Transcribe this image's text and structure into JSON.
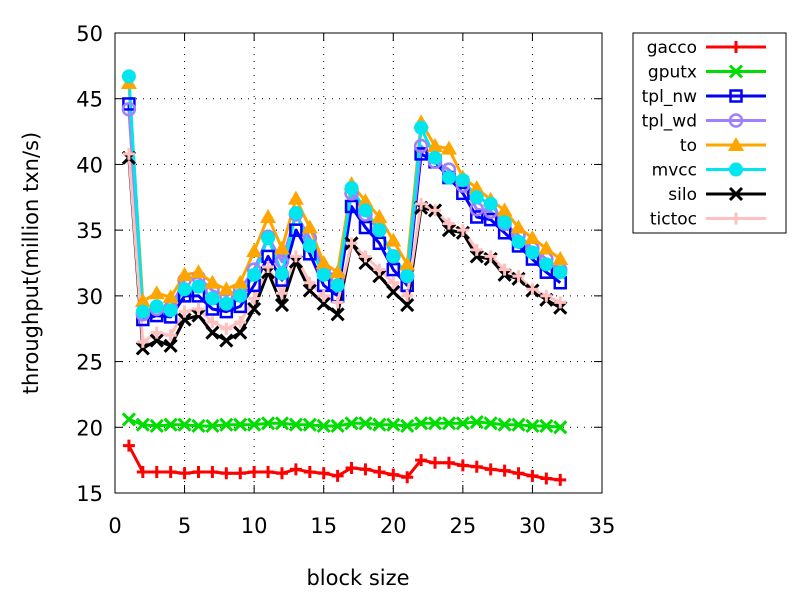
{
  "chart_data": {
    "type": "line",
    "title": "",
    "xlabel": "block size",
    "ylabel": "throughput(million txn/s)",
    "xlim": [
      0,
      35
    ],
    "ylim": [
      15,
      50
    ],
    "xticks": [
      0,
      5,
      10,
      15,
      20,
      25,
      30,
      35
    ],
    "yticks": [
      15,
      20,
      25,
      30,
      35,
      40,
      45,
      50
    ],
    "grid": "dotted",
    "legend_position": "top-right-outside",
    "x": [
      1,
      2,
      3,
      4,
      5,
      6,
      7,
      8,
      9,
      10,
      11,
      12,
      13,
      14,
      15,
      16,
      17,
      18,
      19,
      20,
      21,
      22,
      23,
      24,
      25,
      26,
      27,
      28,
      29,
      30,
      31,
      32
    ],
    "series": [
      {
        "name": "gacco",
        "color": "#ff0000",
        "marker": "plus",
        "values": [
          18.6,
          16.6,
          16.6,
          16.6,
          16.5,
          16.6,
          16.6,
          16.5,
          16.5,
          16.6,
          16.6,
          16.5,
          16.8,
          16.6,
          16.5,
          16.3,
          16.9,
          16.8,
          16.6,
          16.4,
          16.2,
          17.5,
          17.3,
          17.3,
          17.1,
          17.0,
          16.8,
          16.7,
          16.5,
          16.3,
          16.1,
          16.0
        ]
      },
      {
        "name": "gputx",
        "color": "#00dd00",
        "marker": "x",
        "values": [
          20.6,
          20.2,
          20.1,
          20.2,
          20.2,
          20.1,
          20.1,
          20.2,
          20.2,
          20.2,
          20.3,
          20.3,
          20.2,
          20.2,
          20.1,
          20.1,
          20.3,
          20.3,
          20.2,
          20.2,
          20.1,
          20.3,
          20.3,
          20.3,
          20.3,
          20.4,
          20.3,
          20.2,
          20.2,
          20.1,
          20.1,
          20.0
        ]
      },
      {
        "name": "tpl_nw",
        "color": "#0000ff",
        "marker": "square",
        "values": [
          44.6,
          28.2,
          28.5,
          28.4,
          30.0,
          30.0,
          29.0,
          28.8,
          29.2,
          30.8,
          33.0,
          31.2,
          35.0,
          33.2,
          30.8,
          30.0,
          36.8,
          35.2,
          34.0,
          32.0,
          30.8,
          40.8,
          40.2,
          39.0,
          37.8,
          36.0,
          35.8,
          34.8,
          33.8,
          32.8,
          31.8,
          31.0
        ]
      },
      {
        "name": "tpl_wd",
        "color": "#a080ff",
        "marker": "circle",
        "values": [
          44.2,
          28.6,
          29.0,
          29.1,
          31.2,
          31.4,
          30.4,
          30.0,
          30.5,
          32.0,
          34.5,
          32.6,
          36.2,
          34.4,
          32.0,
          31.4,
          37.8,
          36.2,
          35.0,
          33.0,
          31.5,
          41.4,
          40.2,
          39.6,
          38.4,
          36.6,
          36.4,
          35.5,
          34.6,
          33.6,
          32.8,
          32.0
        ]
      },
      {
        "name": "to",
        "color": "#ffa500",
        "marker": "triangle",
        "values": [
          46.2,
          29.6,
          30.2,
          29.9,
          31.6,
          31.8,
          31.0,
          30.5,
          31.0,
          33.4,
          36.0,
          33.6,
          37.4,
          35.2,
          32.5,
          31.8,
          38.5,
          37.2,
          36.0,
          34.2,
          32.4,
          43.2,
          41.4,
          41.2,
          39.0,
          38.2,
          37.3,
          36.5,
          35.2,
          34.4,
          33.6,
          32.8
        ]
      },
      {
        "name": "mvcc",
        "color": "#00e5ee",
        "marker": "filled-circle",
        "values": [
          46.7,
          28.8,
          29.2,
          28.9,
          30.5,
          30.7,
          29.8,
          29.4,
          30.0,
          31.6,
          34.4,
          31.7,
          36.3,
          33.8,
          31.6,
          30.8,
          38.2,
          36.5,
          35.0,
          33.0,
          31.5,
          42.8,
          40.5,
          39.0,
          38.8,
          37.5,
          37.0,
          35.6,
          34.1,
          33.3,
          32.4,
          31.8
        ]
      },
      {
        "name": "silo",
        "color": "#000000",
        "marker": "x",
        "values": [
          40.5,
          26.0,
          26.6,
          26.2,
          28.2,
          28.5,
          27.2,
          26.6,
          27.2,
          29.0,
          31.8,
          29.3,
          32.6,
          30.4,
          29.4,
          28.6,
          34.0,
          32.5,
          31.5,
          30.3,
          29.3,
          36.7,
          36.5,
          35.0,
          34.8,
          33.0,
          32.8,
          31.6,
          31.3,
          30.4,
          29.7,
          29.1
        ]
      },
      {
        "name": "tictoc",
        "color": "#ffc0c0",
        "marker": "plus",
        "values": [
          40.8,
          26.5,
          27.2,
          27.0,
          28.8,
          29.0,
          28.0,
          27.5,
          28.0,
          29.8,
          32.2,
          30.2,
          33.0,
          31.0,
          30.0,
          29.5,
          34.0,
          33.0,
          32.0,
          31.0,
          30.0,
          37.0,
          36.5,
          35.5,
          35.0,
          33.5,
          33.0,
          32.0,
          31.5,
          30.5,
          30.0,
          29.5
        ]
      }
    ]
  }
}
